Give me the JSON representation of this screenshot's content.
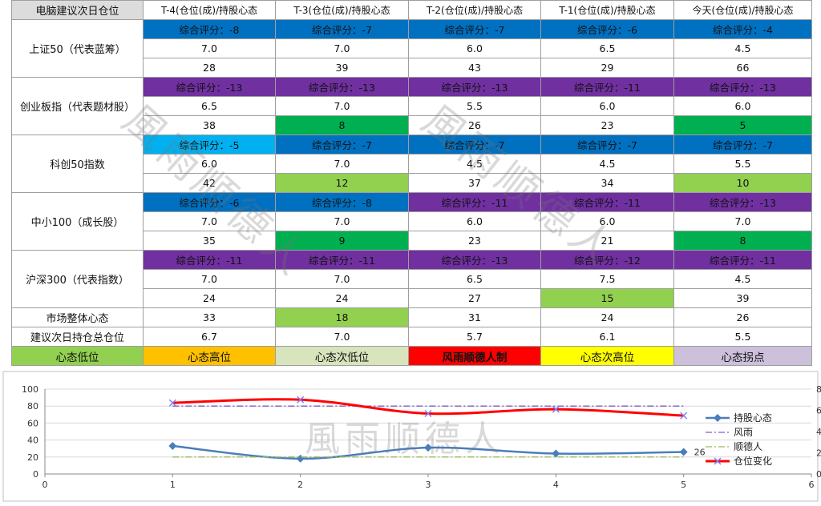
{
  "table": {
    "corner": "电脑建议次日仓位",
    "columns": [
      "T-4(仓位(成)/持股心态",
      "T-3(仓位(成)/持股心态",
      "T-2(仓位(成)/持股心态",
      "T-1(仓位(成)/持股心态",
      "今天(仓位(成)/持股心态"
    ],
    "indices": [
      {
        "name": "上证50（代表蓝筹）",
        "scores": [
          "综合评分：-8",
          "综合评分：-7",
          "综合评分：-7",
          "综合评分：-6",
          "综合评分：-4"
        ],
        "score_colors": [
          "#0070c0",
          "#0070c0",
          "#0070c0",
          "#0070c0",
          "#0070c0"
        ],
        "positions": [
          "7.0",
          "7.0",
          "6.0",
          "6.5",
          "4.5"
        ],
        "moods": [
          "28",
          "39",
          "43",
          "29",
          "66"
        ],
        "mood_colors": [
          "#ffffff",
          "#ffffff",
          "#ffffff",
          "#ffffff",
          "#ffffff"
        ]
      },
      {
        "name": "创业板指（代表题材股）",
        "scores": [
          "综合评分：-13",
          "综合评分：-13",
          "综合评分：-13",
          "综合评分：-11",
          "综合评分：-13"
        ],
        "score_colors": [
          "#7030a0",
          "#7030a0",
          "#7030a0",
          "#7030a0",
          "#7030a0"
        ],
        "positions": [
          "6.5",
          "7.0",
          "5.5",
          "6.0",
          "6.0"
        ],
        "moods": [
          "38",
          "8",
          "26",
          "23",
          "5"
        ],
        "mood_colors": [
          "#ffffff",
          "#00b050",
          "#ffffff",
          "#ffffff",
          "#00b050"
        ]
      },
      {
        "name": "科创50指数",
        "scores": [
          "综合评分：-5",
          "综合评分：-7",
          "综合评分：-7",
          "综合评分：-7",
          "综合评分：-7"
        ],
        "score_colors": [
          "#00b0f0",
          "#0070c0",
          "#0070c0",
          "#0070c0",
          "#0070c0"
        ],
        "positions": [
          "6.0",
          "7.0",
          "4.5",
          "4.5",
          "5.5"
        ],
        "moods": [
          "42",
          "12",
          "37",
          "34",
          "10"
        ],
        "mood_colors": [
          "#ffffff",
          "#92d050",
          "#ffffff",
          "#ffffff",
          "#92d050"
        ]
      },
      {
        "name": "中小100（成长股）",
        "scores": [
          "综合评分：-6",
          "综合评分：-8",
          "综合评分：-11",
          "综合评分：-11",
          "综合评分：-13"
        ],
        "score_colors": [
          "#0070c0",
          "#0070c0",
          "#7030a0",
          "#7030a0",
          "#7030a0"
        ],
        "positions": [
          "7.0",
          "7.0",
          "6.0",
          "6.0",
          "7.0"
        ],
        "moods": [
          "35",
          "9",
          "23",
          "21",
          "8"
        ],
        "mood_colors": [
          "#ffffff",
          "#00b050",
          "#ffffff",
          "#ffffff",
          "#00b050"
        ]
      },
      {
        "name": "沪深300（代表指数）",
        "scores": [
          "综合评分：-11",
          "综合评分：-11",
          "综合评分：-13",
          "综合评分：-12",
          "综合评分：-11"
        ],
        "score_colors": [
          "#7030a0",
          "#7030a0",
          "#7030a0",
          "#7030a0",
          "#7030a0"
        ],
        "positions": [
          "7.0",
          "7.0",
          "6.5",
          "7.5",
          "4.5"
        ],
        "moods": [
          "24",
          "24",
          "27",
          "15",
          "39"
        ],
        "mood_colors": [
          "#ffffff",
          "#ffffff",
          "#ffffff",
          "#92d050",
          "#ffffff"
        ]
      }
    ],
    "market_label": "市场整体心态",
    "market_values": [
      "33",
      "18",
      "31",
      "24",
      "26"
    ],
    "market_colors": [
      "#ffffff",
      "#92d050",
      "#ffffff",
      "#ffffff",
      "#ffffff"
    ],
    "position_label": "建议次日持仓总仓位",
    "position_values": [
      "6.7",
      "7.0",
      "5.7",
      "6.1",
      "5.5"
    ],
    "legend": [
      {
        "label": "心态低位",
        "color": "#92d050",
        "text_color": "#111111",
        "bold": false
      },
      {
        "label": "心态高位",
        "color": "#ffc000",
        "text_color": "#111111",
        "bold": false
      },
      {
        "label": "心态次低位",
        "color": "#d8e4bc",
        "text_color": "#111111",
        "bold": false
      },
      {
        "label": "风雨顺德人制",
        "color": "#ff0000",
        "text_color": "#111111",
        "bold": true
      },
      {
        "label": "心态次高位",
        "color": "#ffff00",
        "text_color": "#111111",
        "bold": false
      },
      {
        "label": "心态拐点",
        "color": "#ccc0da",
        "text_color": "#111111",
        "bold": false
      }
    ]
  },
  "watermark": "風雨顺德人",
  "chart_data": {
    "type": "line",
    "x": [
      1,
      2,
      3,
      4,
      5
    ],
    "xlim": [
      0,
      6
    ],
    "xticks": [
      "0",
      "1",
      "2",
      "3",
      "4",
      "5",
      "6"
    ],
    "ylim": [
      0,
      100
    ],
    "yticks": [
      "0",
      "20",
      "40",
      "60",
      "80",
      "100"
    ],
    "y2lim": [
      0,
      8
    ],
    "y2ticks": [
      "0",
      "2",
      "4",
      "6",
      "8"
    ],
    "series": [
      {
        "name": "持股心态",
        "axis": "left",
        "values": [
          33,
          18,
          31,
          24,
          26
        ],
        "color": "#4a7ebb",
        "style": "solid-diamond"
      },
      {
        "name": "风雨",
        "axis": "left",
        "values": [
          80,
          80,
          80,
          80,
          80
        ],
        "color": "#7f5fbf",
        "style": "dashdot"
      },
      {
        "name": "顺德人",
        "axis": "left",
        "values": [
          20,
          20,
          20,
          20,
          20
        ],
        "color": "#9bbb59",
        "style": "dashdot"
      },
      {
        "name": "仓位变化",
        "axis": "right",
        "values": [
          6.7,
          7.0,
          5.7,
          6.1,
          5.5
        ],
        "color": "#ff0000",
        "style": "solid-x"
      }
    ],
    "last_point_label": "26",
    "grid": true,
    "legend_position": "right"
  }
}
